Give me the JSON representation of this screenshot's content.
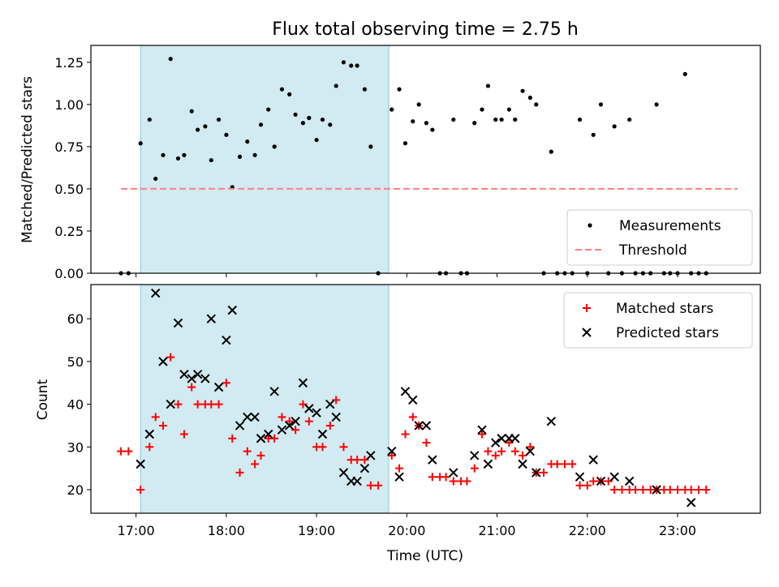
{
  "chart_data": [
    {
      "type": "scatter",
      "title": "Flux total observing time = 2.75 h",
      "ylabel": "Matched/Predicted stars",
      "xlim": [
        "16:30",
        "23:55"
      ],
      "ylim": [
        0,
        1.35
      ],
      "yticks": [
        "0.00",
        "0.25",
        "0.50",
        "0.75",
        "1.00",
        "1.25"
      ],
      "shaded_interval": [
        "17:03",
        "19:48"
      ],
      "shade_color": "#add8e6",
      "legend_position": "lower-right",
      "series": [
        {
          "name": "Measurements",
          "marker": "dot",
          "color": "#000000",
          "points": [
            [
              "16:50",
              0.0
            ],
            [
              "16:55",
              0.0
            ],
            [
              "17:03",
              0.77
            ],
            [
              "17:09",
              0.91
            ],
            [
              "17:13",
              0.56
            ],
            [
              "17:18",
              0.7
            ],
            [
              "17:23",
              1.27
            ],
            [
              "17:28",
              0.68
            ],
            [
              "17:32",
              0.7
            ],
            [
              "17:37",
              0.96
            ],
            [
              "17:41",
              0.85
            ],
            [
              "17:46",
              0.87
            ],
            [
              "17:50",
              0.67
            ],
            [
              "17:55",
              0.91
            ],
            [
              "18:00",
              0.82
            ],
            [
              "18:04",
              0.51
            ],
            [
              "18:09",
              0.69
            ],
            [
              "18:14",
              0.78
            ],
            [
              "18:19",
              0.7
            ],
            [
              "18:23",
              0.88
            ],
            [
              "18:28",
              0.97
            ],
            [
              "18:32",
              0.75
            ],
            [
              "18:37",
              1.09
            ],
            [
              "18:42",
              1.06
            ],
            [
              "18:46",
              0.94
            ],
            [
              "18:51",
              0.89
            ],
            [
              "18:55",
              0.92
            ],
            [
              "19:00",
              0.79
            ],
            [
              "19:04",
              0.91
            ],
            [
              "19:09",
              0.88
            ],
            [
              "19:13",
              1.11
            ],
            [
              "19:18",
              1.25
            ],
            [
              "19:23",
              1.23
            ],
            [
              "19:27",
              1.23
            ],
            [
              "19:32",
              1.09
            ],
            [
              "19:36",
              0.75
            ],
            [
              "19:41",
              0.0
            ],
            [
              "19:50",
              0.97
            ],
            [
              "19:55",
              1.09
            ],
            [
              "19:59",
              0.77
            ],
            [
              "20:04",
              0.9
            ],
            [
              "20:08",
              1.0
            ],
            [
              "20:13",
              0.89
            ],
            [
              "20:17",
              0.85
            ],
            [
              "20:22",
              0.0
            ],
            [
              "20:26",
              0.0
            ],
            [
              "20:31",
              0.91
            ],
            [
              "20:36",
              0.0
            ],
            [
              "20:40",
              0.0
            ],
            [
              "20:45",
              0.89
            ],
            [
              "20:50",
              0.97
            ],
            [
              "20:54",
              1.11
            ],
            [
              "20:59",
              0.91
            ],
            [
              "21:03",
              0.91
            ],
            [
              "21:08",
              0.97
            ],
            [
              "21:12",
              0.91
            ],
            [
              "21:17",
              1.08
            ],
            [
              "21:22",
              1.04
            ],
            [
              "21:26",
              1.0
            ],
            [
              "21:31",
              0.0
            ],
            [
              "21:36",
              0.72
            ],
            [
              "21:40",
              0.0
            ],
            [
              "21:45",
              0.0
            ],
            [
              "21:50",
              0.0
            ],
            [
              "21:55",
              0.91
            ],
            [
              "22:00",
              0.0
            ],
            [
              "22:04",
              0.82
            ],
            [
              "22:09",
              1.0
            ],
            [
              "22:14",
              0.0
            ],
            [
              "22:18",
              0.87
            ],
            [
              "22:23",
              0.0
            ],
            [
              "22:28",
              0.91
            ],
            [
              "22:32",
              0.0
            ],
            [
              "22:37",
              0.0
            ],
            [
              "22:42",
              0.0
            ],
            [
              "22:46",
              1.0
            ],
            [
              "22:51",
              0.0
            ],
            [
              "22:55",
              0.0
            ],
            [
              "23:00",
              0.0
            ],
            [
              "23:05",
              1.18
            ],
            [
              "23:09",
              0.0
            ],
            [
              "23:14",
              0.0
            ],
            [
              "23:19",
              0.0
            ]
          ]
        },
        {
          "name": "Threshold",
          "marker": "dashed-line",
          "color": "#ff7f7f",
          "points": [
            [
              "16:50",
              0.5
            ],
            [
              "23:40",
              0.5
            ]
          ]
        }
      ]
    },
    {
      "type": "scatter",
      "xlabel": "Time (UTC)",
      "ylabel": "Count",
      "xlim": [
        "16:30",
        "23:55"
      ],
      "ylim": [
        14.5,
        68
      ],
      "yticks": [
        "20",
        "30",
        "40",
        "50",
        "60"
      ],
      "xticks": [
        "17:00",
        "18:00",
        "19:00",
        "20:00",
        "21:00",
        "22:00",
        "23:00"
      ],
      "shaded_interval": [
        "17:03",
        "19:48"
      ],
      "shade_color": "#add8e6",
      "legend_position": "upper-right",
      "series": [
        {
          "name": "Matched stars",
          "marker": "plus",
          "color": "#ff0000",
          "points": [
            [
              "16:50",
              29
            ],
            [
              "16:55",
              29
            ],
            [
              "17:03",
              20
            ],
            [
              "17:09",
              30
            ],
            [
              "17:13",
              37
            ],
            [
              "17:18",
              35
            ],
            [
              "17:23",
              51
            ],
            [
              "17:28",
              40
            ],
            [
              "17:32",
              33
            ],
            [
              "17:37",
              44
            ],
            [
              "17:41",
              40
            ],
            [
              "17:46",
              40
            ],
            [
              "17:50",
              40
            ],
            [
              "17:55",
              40
            ],
            [
              "18:00",
              45
            ],
            [
              "18:04",
              32
            ],
            [
              "18:09",
              24
            ],
            [
              "18:14",
              29
            ],
            [
              "18:19",
              26
            ],
            [
              "18:23",
              28
            ],
            [
              "18:28",
              32
            ],
            [
              "18:32",
              32
            ],
            [
              "18:37",
              37
            ],
            [
              "18:42",
              36
            ],
            [
              "18:46",
              34
            ],
            [
              "18:51",
              40
            ],
            [
              "18:55",
              36
            ],
            [
              "19:00",
              30
            ],
            [
              "19:04",
              30
            ],
            [
              "19:09",
              35
            ],
            [
              "19:13",
              41
            ],
            [
              "19:18",
              30
            ],
            [
              "19:23",
              27
            ],
            [
              "19:27",
              27
            ],
            [
              "19:32",
              27
            ],
            [
              "19:36",
              21
            ],
            [
              "19:41",
              21
            ],
            [
              "19:50",
              28
            ],
            [
              "19:55",
              25
            ],
            [
              "19:59",
              33
            ],
            [
              "20:04",
              37
            ],
            [
              "20:08",
              35
            ],
            [
              "20:13",
              31
            ],
            [
              "20:17",
              23
            ],
            [
              "20:22",
              23
            ],
            [
              "20:26",
              23
            ],
            [
              "20:31",
              22
            ],
            [
              "20:36",
              22
            ],
            [
              "20:40",
              22
            ],
            [
              "20:45",
              25
            ],
            [
              "20:50",
              33
            ],
            [
              "20:54",
              29
            ],
            [
              "20:59",
              28
            ],
            [
              "21:03",
              29
            ],
            [
              "21:08",
              31
            ],
            [
              "21:12",
              29
            ],
            [
              "21:17",
              28
            ],
            [
              "21:22",
              30
            ],
            [
              "21:26",
              24
            ],
            [
              "21:31",
              24
            ],
            [
              "21:36",
              26
            ],
            [
              "21:40",
              26
            ],
            [
              "21:45",
              26
            ],
            [
              "21:50",
              26
            ],
            [
              "21:55",
              21
            ],
            [
              "22:00",
              21
            ],
            [
              "22:04",
              22
            ],
            [
              "22:09",
              22
            ],
            [
              "22:14",
              22
            ],
            [
              "22:18",
              20
            ],
            [
              "22:23",
              20
            ],
            [
              "22:28",
              20
            ],
            [
              "22:32",
              20
            ],
            [
              "22:37",
              20
            ],
            [
              "22:42",
              20
            ],
            [
              "22:46",
              20
            ],
            [
              "22:51",
              20
            ],
            [
              "22:55",
              20
            ],
            [
              "23:00",
              20
            ],
            [
              "23:05",
              20
            ],
            [
              "23:09",
              20
            ],
            [
              "23:14",
              20
            ],
            [
              "23:19",
              20
            ]
          ]
        },
        {
          "name": "Predicted stars",
          "marker": "x",
          "color": "#000000",
          "points": [
            [
              "17:03",
              26
            ],
            [
              "17:09",
              33
            ],
            [
              "17:13",
              66
            ],
            [
              "17:18",
              50
            ],
            [
              "17:23",
              40
            ],
            [
              "17:28",
              59
            ],
            [
              "17:32",
              47
            ],
            [
              "17:37",
              46
            ],
            [
              "17:41",
              47
            ],
            [
              "17:46",
              46
            ],
            [
              "17:50",
              60
            ],
            [
              "17:55",
              44
            ],
            [
              "18:00",
              55
            ],
            [
              "18:04",
              62
            ],
            [
              "18:09",
              35
            ],
            [
              "18:14",
              37
            ],
            [
              "18:19",
              37
            ],
            [
              "18:23",
              32
            ],
            [
              "18:28",
              33
            ],
            [
              "18:32",
              43
            ],
            [
              "18:37",
              34
            ],
            [
              "18:42",
              35
            ],
            [
              "18:46",
              36
            ],
            [
              "18:51",
              45
            ],
            [
              "18:55",
              39
            ],
            [
              "19:00",
              38
            ],
            [
              "19:04",
              33
            ],
            [
              "19:09",
              40
            ],
            [
              "19:13",
              37
            ],
            [
              "19:18",
              24
            ],
            [
              "19:23",
              22
            ],
            [
              "19:27",
              22
            ],
            [
              "19:32",
              25
            ],
            [
              "19:36",
              28
            ],
            [
              "19:50",
              29
            ],
            [
              "19:55",
              23
            ],
            [
              "19:59",
              43
            ],
            [
              "20:04",
              41
            ],
            [
              "20:08",
              35
            ],
            [
              "20:13",
              35
            ],
            [
              "20:17",
              27
            ],
            [
              "20:31",
              24
            ],
            [
              "20:45",
              28
            ],
            [
              "20:50",
              34
            ],
            [
              "20:54",
              26
            ],
            [
              "20:59",
              31
            ],
            [
              "21:03",
              32
            ],
            [
              "21:08",
              32
            ],
            [
              "21:12",
              32
            ],
            [
              "21:17",
              26
            ],
            [
              "21:22",
              29
            ],
            [
              "21:26",
              24
            ],
            [
              "21:36",
              36
            ],
            [
              "21:55",
              23
            ],
            [
              "22:04",
              27
            ],
            [
              "22:09",
              22
            ],
            [
              "22:18",
              23
            ],
            [
              "22:28",
              22
            ],
            [
              "22:46",
              20
            ],
            [
              "23:09",
              17
            ]
          ]
        }
      ]
    }
  ]
}
